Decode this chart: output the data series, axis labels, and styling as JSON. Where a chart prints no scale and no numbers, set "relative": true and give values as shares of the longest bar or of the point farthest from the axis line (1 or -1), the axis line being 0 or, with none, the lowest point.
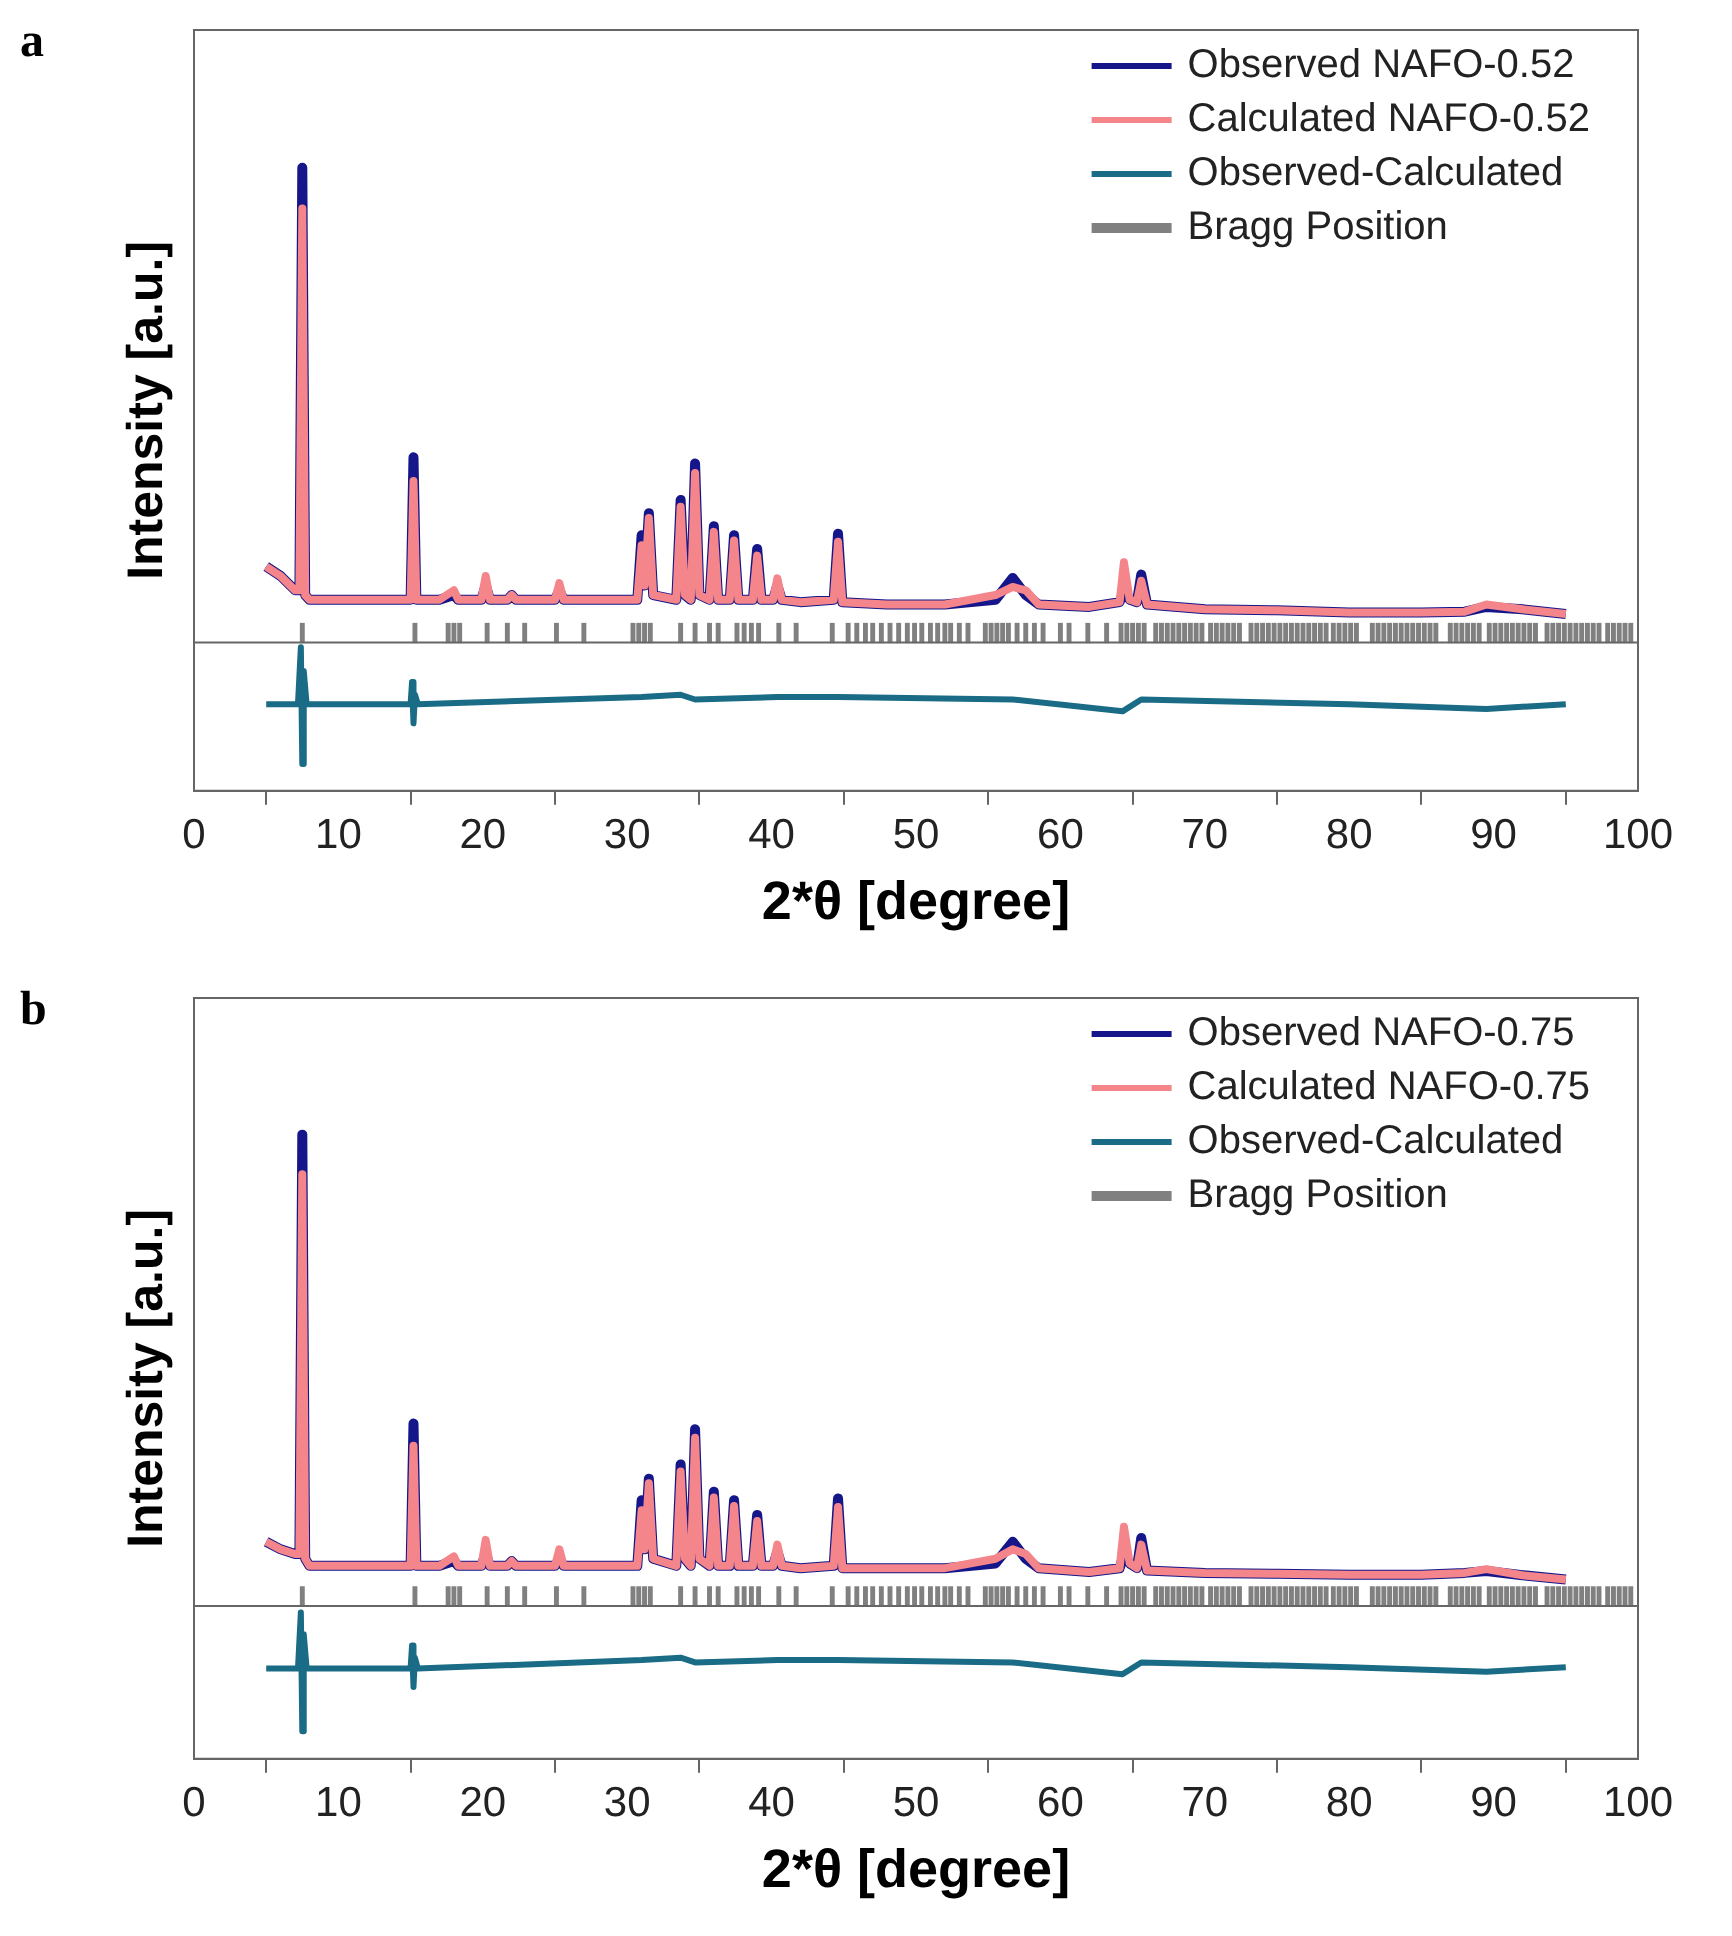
{
  "chart_data": [
    {
      "type": "line",
      "title": "a",
      "xlabel": "2*θ [degree]",
      "ylabel": "Intensity [a.u.]",
      "relative": true,
      "xlim": [
        0,
        100
      ],
      "xticks": [
        0,
        10,
        20,
        30,
        40,
        50,
        60,
        70,
        80,
        90,
        100
      ],
      "legend": "top right",
      "grid": false,
      "x": [
        5,
        6,
        7,
        7.3,
        7.5,
        7.7,
        8,
        10,
        12,
        15.0,
        15.2,
        15.4,
        17,
        18,
        18.3,
        19.9,
        20.2,
        20.5,
        21.7,
        22,
        22.3,
        25.0,
        25.3,
        25.6,
        28,
        30.7,
        31.0,
        31.2,
        31.5,
        31.8,
        33.4,
        33.7,
        34.0,
        34.4,
        34.7,
        35.0,
        35.7,
        36.0,
        36.3,
        37.1,
        37.4,
        37.7,
        38.7,
        39.0,
        39.3,
        40.1,
        40.4,
        40.7,
        42,
        44.3,
        44.6,
        44.9,
        48,
        52,
        55.5,
        56.7,
        57.6,
        58.5,
        62,
        64.1,
        64.4,
        64.8,
        65.3,
        65.6,
        66.0,
        70,
        75,
        80,
        85,
        88,
        89.5,
        92,
        95
      ],
      "series": [
        {
          "name": "Observed NAFO-0.52",
          "color": "#15168a",
          "values": [
            0.16,
            0.14,
            0.11,
            0.11,
            1.0,
            0.1,
            0.09,
            0.09,
            0.09,
            0.09,
            0.39,
            0.09,
            0.09,
            0.1,
            0.09,
            0.09,
            0.12,
            0.09,
            0.09,
            0.1,
            0.09,
            0.09,
            0.11,
            0.09,
            0.09,
            0.09,
            0.226,
            0.12,
            0.272,
            0.1,
            0.09,
            0.3,
            0.1,
            0.09,
            0.377,
            0.1,
            0.09,
            0.245,
            0.09,
            0.09,
            0.226,
            0.09,
            0.09,
            0.197,
            0.09,
            0.09,
            0.12,
            0.09,
            0.085,
            0.09,
            0.229,
            0.085,
            0.08,
            0.08,
            0.09,
            0.136,
            0.1,
            0.08,
            0.075,
            0.085,
            0.11,
            0.09,
            0.085,
            0.143,
            0.08,
            0.07,
            0.068,
            0.063,
            0.063,
            0.065,
            0.075,
            0.07,
            0.06
          ]
        },
        {
          "name": "Calculated NAFO-0.52",
          "color": "#f4858a",
          "values": [
            0.16,
            0.14,
            0.11,
            0.11,
            0.914,
            0.1,
            0.09,
            0.09,
            0.09,
            0.09,
            0.34,
            0.09,
            0.09,
            0.11,
            0.09,
            0.09,
            0.14,
            0.09,
            0.09,
            0.1,
            0.09,
            0.09,
            0.125,
            0.09,
            0.09,
            0.09,
            0.205,
            0.12,
            0.262,
            0.1,
            0.09,
            0.286,
            0.1,
            0.09,
            0.357,
            0.1,
            0.09,
            0.233,
            0.09,
            0.09,
            0.215,
            0.09,
            0.09,
            0.183,
            0.09,
            0.09,
            0.135,
            0.09,
            0.085,
            0.09,
            0.212,
            0.085,
            0.08,
            0.08,
            0.1,
            0.117,
            0.11,
            0.08,
            0.075,
            0.085,
            0.169,
            0.09,
            0.085,
            0.13,
            0.08,
            0.07,
            0.068,
            0.063,
            0.063,
            0.065,
            0.08,
            0.07,
            0.06
          ]
        },
        {
          "name": "Observed-Calculated",
          "color": "#1a6b85",
          "x": [
            5,
            7.2,
            7.4,
            7.5,
            7.6,
            7.8,
            15.0,
            15.1,
            15.2,
            15.3,
            15.5,
            31,
            33.7,
            34.7,
            40.4,
            44.6,
            56.7,
            64.3,
            65.6,
            80,
            89.5,
            95
          ],
          "values": [
            -0.13,
            -0.13,
            -0.01,
            -0.256,
            -0.06,
            -0.13,
            -0.13,
            -0.083,
            -0.17,
            -0.11,
            -0.13,
            -0.115,
            -0.11,
            -0.12,
            -0.115,
            -0.115,
            -0.12,
            -0.145,
            -0.12,
            -0.13,
            -0.14,
            -0.13
          ]
        },
        {
          "name": "Bragg Position",
          "color": "#808080",
          "type": "bar",
          "x": [
            7.5,
            15.3,
            17.6,
            18.0,
            18.4,
            20.3,
            21.7,
            22.9,
            25.1,
            27.0,
            30.4,
            30.8,
            31.2,
            31.6,
            33.7,
            34.7,
            35.7,
            36.3,
            37.6,
            38.1,
            38.6,
            39.1,
            40.5,
            41.7,
            44.2,
            45.3,
            45.9,
            46.5,
            47.0,
            47.6,
            48.2,
            48.8,
            49.4,
            49.9,
            50.4,
            51.0,
            51.5,
            52.0,
            52.4,
            53.0,
            53.6,
            54.8,
            55.2,
            55.6,
            56.0,
            56.4,
            57.0,
            57.6,
            58.2,
            58.8,
            60.0,
            60.6,
            61.9,
            63.2,
            64.2,
            64.6,
            65.0,
            65.4,
            65.8,
            66.6,
            67.0,
            67.4,
            67.8,
            68.2,
            68.6,
            69.0,
            69.4,
            69.8,
            70.4,
            70.8,
            71.2,
            71.6,
            72.0,
            72.4,
            73.2,
            73.6,
            74.0,
            74.4,
            74.8,
            75.2,
            75.6,
            76.0,
            76.4,
            76.8,
            77.2,
            77.6,
            78.0,
            78.4,
            78.9,
            79.3,
            79.7,
            80.1,
            80.5,
            81.6,
            82.0,
            82.4,
            82.8,
            83.2,
            83.6,
            84.0,
            84.4,
            84.8,
            85.2,
            85.6,
            86.0,
            87.0,
            87.4,
            87.8,
            88.2,
            88.6,
            89.0,
            89.7,
            90.1,
            90.5,
            90.9,
            91.3,
            91.7,
            92.1,
            92.5,
            92.9,
            93.7,
            94.1,
            94.5,
            94.9,
            95.3,
            95.7,
            96.1,
            96.5,
            96.9,
            97.3,
            97.9,
            98.3,
            98.7,
            99.1,
            99.5
          ],
          "values": [
            0.04,
            0.04,
            0.04,
            0.04,
            0.04,
            0.04,
            0.04,
            0.04,
            0.04,
            0.04,
            0.04,
            0.04,
            0.04,
            0.04,
            0.04,
            0.04,
            0.04,
            0.04,
            0.04,
            0.04,
            0.04,
            0.04,
            0.04,
            0.04,
            0.04,
            0.04,
            0.04,
            0.04,
            0.04,
            0.04,
            0.04,
            0.04,
            0.04,
            0.04,
            0.04,
            0.04,
            0.04,
            0.04,
            0.04,
            0.04,
            0.04,
            0.04,
            0.04,
            0.04,
            0.04,
            0.04,
            0.04,
            0.04,
            0.04,
            0.04,
            0.04,
            0.04,
            0.04,
            0.04,
            0.04,
            0.04,
            0.04,
            0.04,
            0.04,
            0.04,
            0.04,
            0.04,
            0.04,
            0.04,
            0.04,
            0.04,
            0.04,
            0.04,
            0.04,
            0.04,
            0.04,
            0.04,
            0.04,
            0.04,
            0.04,
            0.04,
            0.04,
            0.04,
            0.04,
            0.04,
            0.04,
            0.04,
            0.04,
            0.04,
            0.04,
            0.04,
            0.04,
            0.04,
            0.04,
            0.04,
            0.04,
            0.04,
            0.04,
            0.04,
            0.04,
            0.04,
            0.04,
            0.04,
            0.04,
            0.04,
            0.04,
            0.04,
            0.04,
            0.04,
            0.04,
            0.04,
            0.04,
            0.04,
            0.04,
            0.04,
            0.04,
            0.04,
            0.04,
            0.04,
            0.04,
            0.04,
            0.04,
            0.04,
            0.04,
            0.04,
            0.04,
            0.04,
            0.04,
            0.04,
            0.04,
            0.04,
            0.04,
            0.04,
            0.04,
            0.04,
            0.04,
            0.04,
            0.04,
            0.04,
            0.04
          ]
        }
      ]
    },
    {
      "type": "line",
      "title": "b",
      "xlabel": "2*θ [degree]",
      "ylabel": "Intensity [a.u.]",
      "relative": true,
      "xlim": [
        0,
        100
      ],
      "xticks": [
        0,
        10,
        20,
        30,
        40,
        50,
        60,
        70,
        80,
        90,
        100
      ],
      "legend": "top right",
      "grid": false,
      "x": [
        5,
        6,
        7,
        7.3,
        7.5,
        7.7,
        8,
        10,
        12,
        15.0,
        15.2,
        15.4,
        17,
        18,
        18.3,
        19.9,
        20.2,
        20.5,
        21.7,
        22,
        22.3,
        25.0,
        25.3,
        25.6,
        28,
        30.7,
        31.0,
        31.2,
        31.5,
        31.8,
        33.4,
        33.7,
        34.0,
        34.4,
        34.7,
        35.0,
        35.7,
        36.0,
        36.3,
        37.1,
        37.4,
        37.7,
        38.7,
        39.0,
        39.3,
        40.1,
        40.4,
        40.7,
        42,
        44.3,
        44.6,
        44.9,
        48,
        52,
        55.5,
        56.7,
        57.6,
        58.5,
        62,
        64.1,
        64.4,
        64.8,
        65.3,
        65.6,
        66.0,
        70,
        75,
        80,
        85,
        88,
        89.5,
        92,
        95
      ],
      "series": [
        {
          "name": "Observed NAFO-0.75",
          "color": "#15168a",
          "values": [
            0.136,
            0.12,
            0.11,
            0.11,
            1.0,
            0.1,
            0.085,
            0.085,
            0.085,
            0.085,
            0.387,
            0.085,
            0.085,
            0.095,
            0.085,
            0.085,
            0.11,
            0.085,
            0.085,
            0.095,
            0.085,
            0.085,
            0.1,
            0.085,
            0.085,
            0.085,
            0.224,
            0.12,
            0.27,
            0.1,
            0.085,
            0.3,
            0.1,
            0.085,
            0.375,
            0.1,
            0.085,
            0.242,
            0.085,
            0.085,
            0.224,
            0.085,
            0.085,
            0.193,
            0.085,
            0.085,
            0.115,
            0.085,
            0.08,
            0.085,
            0.228,
            0.08,
            0.08,
            0.08,
            0.09,
            0.136,
            0.1,
            0.08,
            0.072,
            0.08,
            0.11,
            0.09,
            0.08,
            0.144,
            0.075,
            0.07,
            0.068,
            0.066,
            0.066,
            0.07,
            0.074,
            0.065,
            0.056
          ]
        },
        {
          "name": "Calculated NAFO-0.75",
          "color": "#f4858a",
          "values": [
            0.136,
            0.12,
            0.11,
            0.11,
            0.916,
            0.1,
            0.085,
            0.085,
            0.085,
            0.085,
            0.34,
            0.085,
            0.085,
            0.105,
            0.085,
            0.085,
            0.14,
            0.085,
            0.085,
            0.095,
            0.085,
            0.085,
            0.12,
            0.085,
            0.085,
            0.085,
            0.203,
            0.12,
            0.26,
            0.1,
            0.085,
            0.285,
            0.1,
            0.085,
            0.357,
            0.1,
            0.085,
            0.23,
            0.085,
            0.085,
            0.212,
            0.085,
            0.085,
            0.18,
            0.085,
            0.085,
            0.13,
            0.085,
            0.08,
            0.085,
            0.21,
            0.08,
            0.08,
            0.08,
            0.1,
            0.12,
            0.11,
            0.08,
            0.072,
            0.08,
            0.168,
            0.09,
            0.08,
            0.13,
            0.075,
            0.07,
            0.068,
            0.066,
            0.066,
            0.07,
            0.078,
            0.065,
            0.056
          ]
        },
        {
          "name": "Observed-Calculated",
          "color": "#1a6b85",
          "x": [
            5,
            7.2,
            7.4,
            7.5,
            7.6,
            7.8,
            15.0,
            15.1,
            15.2,
            15.3,
            15.5,
            31,
            33.7,
            34.7,
            40.4,
            44.6,
            56.7,
            64.3,
            65.6,
            80,
            89.5,
            95
          ],
          "values": [
            -0.133,
            -0.133,
            -0.014,
            -0.266,
            -0.06,
            -0.133,
            -0.133,
            -0.084,
            -0.172,
            -0.11,
            -0.133,
            -0.115,
            -0.11,
            -0.12,
            -0.115,
            -0.115,
            -0.12,
            -0.145,
            -0.12,
            -0.13,
            -0.14,
            -0.13
          ]
        },
        {
          "name": "Bragg Position",
          "color": "#808080",
          "type": "bar",
          "x": [
            7.5,
            15.3,
            17.6,
            18.0,
            18.4,
            20.3,
            21.7,
            22.9,
            25.1,
            27.0,
            30.4,
            30.8,
            31.2,
            31.6,
            33.7,
            34.7,
            35.7,
            36.3,
            37.6,
            38.1,
            38.6,
            39.1,
            40.5,
            41.7,
            44.2,
            45.3,
            45.9,
            46.5,
            47.0,
            47.6,
            48.2,
            48.8,
            49.4,
            49.9,
            50.4,
            51.0,
            51.5,
            52.0,
            52.4,
            53.0,
            53.6,
            54.8,
            55.2,
            55.6,
            56.0,
            56.4,
            57.0,
            57.6,
            58.2,
            58.8,
            60.0,
            60.6,
            61.9,
            63.2,
            64.2,
            64.6,
            65.0,
            65.4,
            65.8,
            66.6,
            67.0,
            67.4,
            67.8,
            68.2,
            68.6,
            69.0,
            69.4,
            69.8,
            70.4,
            70.8,
            71.2,
            71.6,
            72.0,
            72.4,
            73.2,
            73.6,
            74.0,
            74.4,
            74.8,
            75.2,
            75.6,
            76.0,
            76.4,
            76.8,
            77.2,
            77.6,
            78.0,
            78.4,
            78.9,
            79.3,
            79.7,
            80.1,
            80.5,
            81.6,
            82.0,
            82.4,
            82.8,
            83.2,
            83.6,
            84.0,
            84.4,
            84.8,
            85.2,
            85.6,
            86.0,
            87.0,
            87.4,
            87.8,
            88.2,
            88.6,
            89.0,
            89.7,
            90.1,
            90.5,
            90.9,
            91.3,
            91.7,
            92.1,
            92.5,
            92.9,
            93.7,
            94.1,
            94.5,
            94.9,
            95.3,
            95.7,
            96.1,
            96.5,
            96.9,
            97.3,
            97.9,
            98.3,
            98.7,
            99.1,
            99.5
          ],
          "values": [
            0.04,
            0.04,
            0.04,
            0.04,
            0.04,
            0.04,
            0.04,
            0.04,
            0.04,
            0.04,
            0.04,
            0.04,
            0.04,
            0.04,
            0.04,
            0.04,
            0.04,
            0.04,
            0.04,
            0.04,
            0.04,
            0.04,
            0.04,
            0.04,
            0.04,
            0.04,
            0.04,
            0.04,
            0.04,
            0.04,
            0.04,
            0.04,
            0.04,
            0.04,
            0.04,
            0.04,
            0.04,
            0.04,
            0.04,
            0.04,
            0.04,
            0.04,
            0.04,
            0.04,
            0.04,
            0.04,
            0.04,
            0.04,
            0.04,
            0.04,
            0.04,
            0.04,
            0.04,
            0.04,
            0.04,
            0.04,
            0.04,
            0.04,
            0.04,
            0.04,
            0.04,
            0.04,
            0.04,
            0.04,
            0.04,
            0.04,
            0.04,
            0.04,
            0.04,
            0.04,
            0.04,
            0.04,
            0.04,
            0.04,
            0.04,
            0.04,
            0.04,
            0.04,
            0.04,
            0.04,
            0.04,
            0.04,
            0.04,
            0.04,
            0.04,
            0.04,
            0.04,
            0.04,
            0.04,
            0.04,
            0.04,
            0.04,
            0.04,
            0.04,
            0.04,
            0.04,
            0.04,
            0.04,
            0.04,
            0.04,
            0.04,
            0.04,
            0.04,
            0.04,
            0.04,
            0.04,
            0.04,
            0.04,
            0.04,
            0.04,
            0.04,
            0.04,
            0.04,
            0.04,
            0.04,
            0.04,
            0.04,
            0.04,
            0.04,
            0.04,
            0.04,
            0.04,
            0.04,
            0.04,
            0.04,
            0.04,
            0.04,
            0.04,
            0.04,
            0.04,
            0.04,
            0.04,
            0.04,
            0.04,
            0.04
          ]
        }
      ]
    }
  ]
}
